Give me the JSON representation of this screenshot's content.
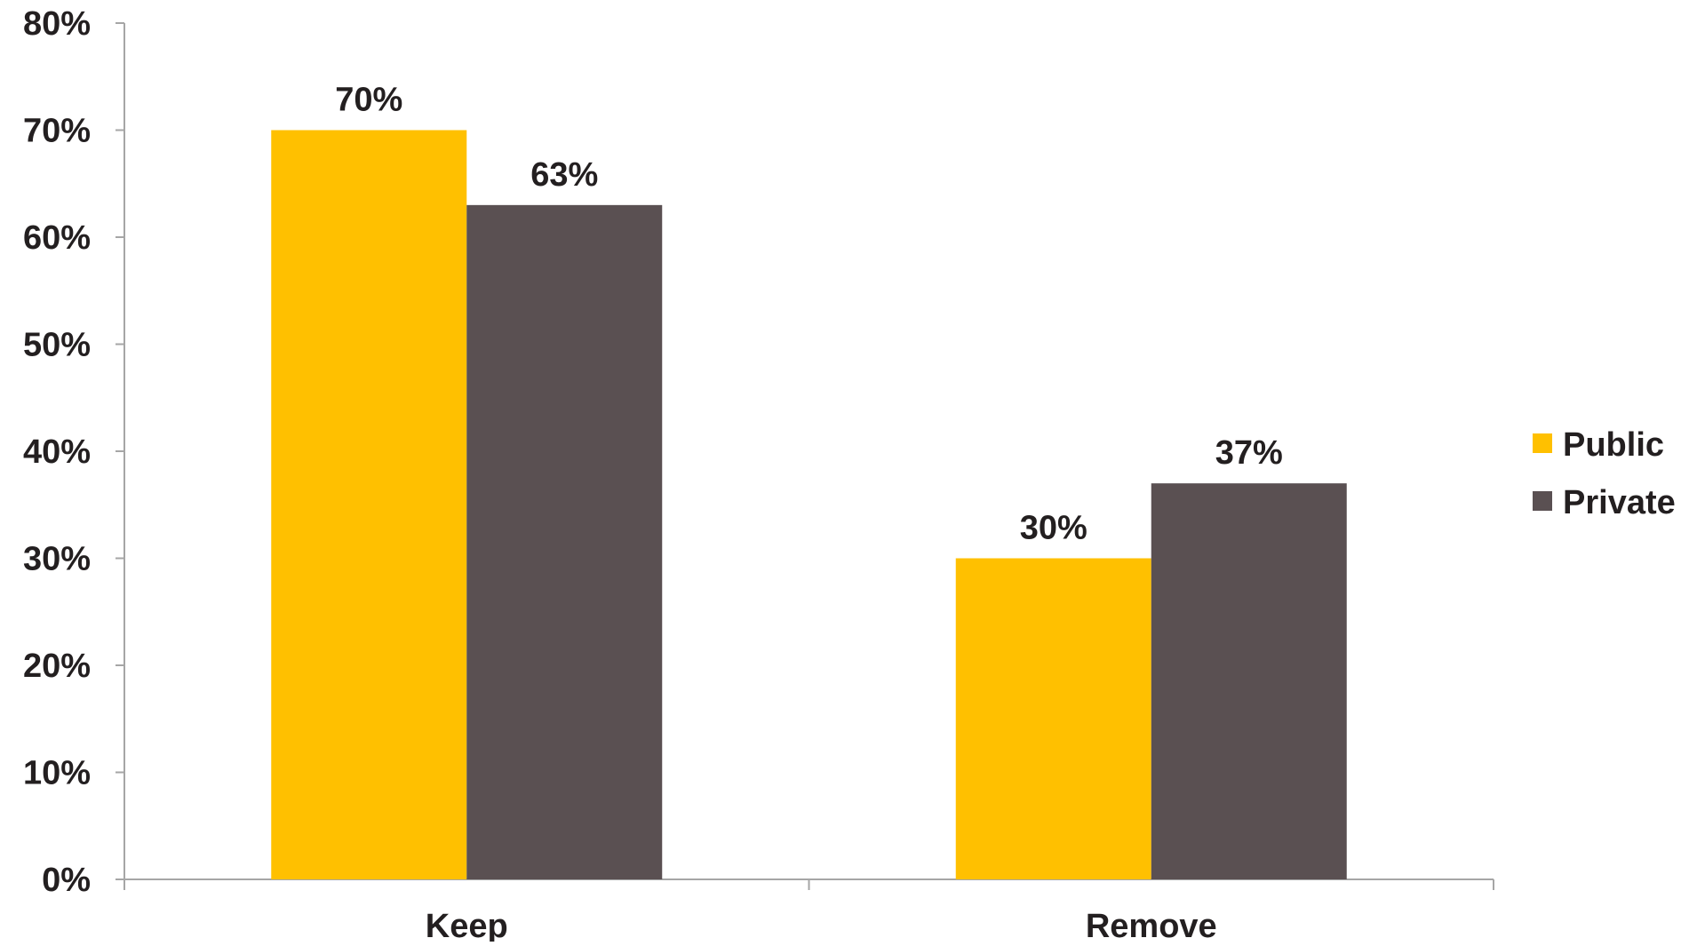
{
  "chart_data": {
    "type": "bar",
    "categories": [
      "Keep",
      "Remove"
    ],
    "series": [
      {
        "name": "Public",
        "values": [
          70,
          30
        ],
        "value_labels": [
          "70%",
          "30%"
        ],
        "color": "#FFC000"
      },
      {
        "name": "Private",
        "values": [
          63,
          37
        ],
        "value_labels": [
          "63%",
          "37%"
        ],
        "color": "#5A5052"
      }
    ],
    "title": "",
    "xlabel": "",
    "ylabel": "",
    "ylim": [
      0,
      80
    ],
    "yticks": [
      0,
      10,
      20,
      30,
      40,
      50,
      60,
      70,
      80
    ],
    "ytick_labels": [
      "0%",
      "10%",
      "20%",
      "30%",
      "40%",
      "50%",
      "60%",
      "70%",
      "80%"
    ],
    "grid": false,
    "legend_position": "right",
    "colors": {
      "axis": "#A6A6A6",
      "text": "#231F20"
    }
  }
}
